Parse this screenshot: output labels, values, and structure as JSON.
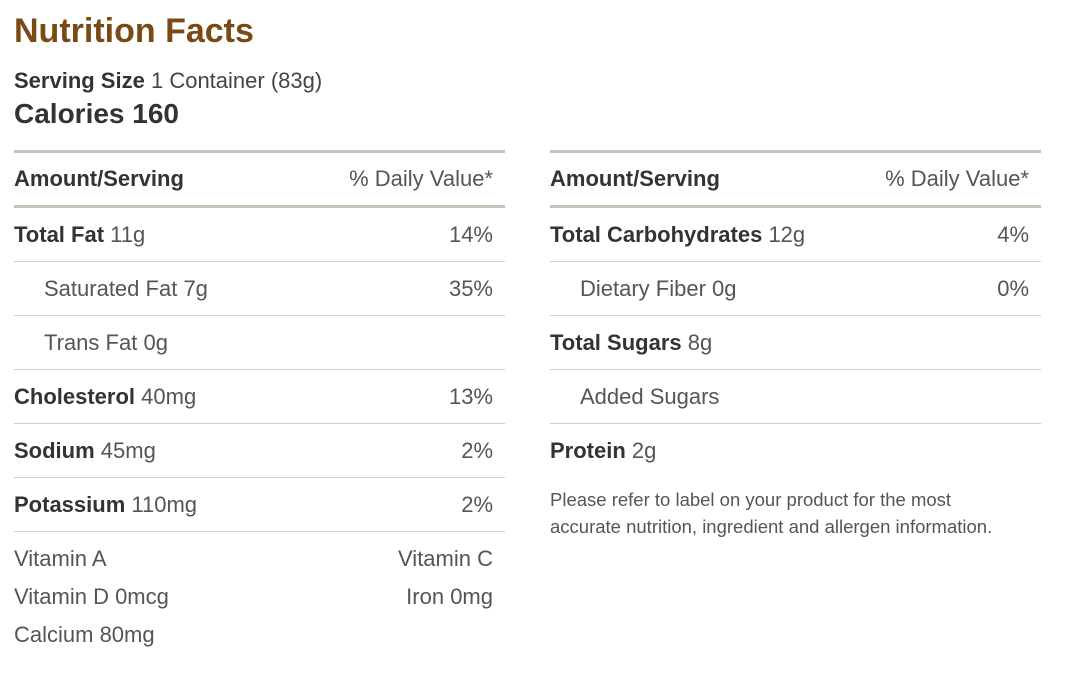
{
  "title": "Nutrition Facts",
  "serving": {
    "label": "Serving Size",
    "value": "1 Container (83g)"
  },
  "calories": {
    "label": "Calories",
    "value": "160"
  },
  "header": {
    "amount_label": "Amount/Serving",
    "daily_value_label": "% Daily Value*"
  },
  "left_rows": [
    {
      "name": "Total Fat",
      "amount": "11g",
      "pct": "14%"
    },
    {
      "name": "Saturated Fat",
      "amount": "7g",
      "pct": "35%"
    },
    {
      "name": "Trans Fat",
      "amount": "0g",
      "pct": ""
    },
    {
      "name": "Cholesterol",
      "amount": "40mg",
      "pct": "13%"
    },
    {
      "name": "Sodium",
      "amount": "45mg",
      "pct": "2%"
    },
    {
      "name": "Potassium",
      "amount": "110mg",
      "pct": "2%"
    }
  ],
  "vitamins": [
    {
      "left": "Vitamin A",
      "right": "Vitamin C"
    },
    {
      "left": "Vitamin D 0mcg",
      "right": "Iron 0mg"
    },
    {
      "left": "Calcium 80mg",
      "right": ""
    }
  ],
  "right_rows": [
    {
      "name": "Total Carbohydrates",
      "amount": "12g",
      "pct": "4%"
    },
    {
      "name": "Dietary Fiber",
      "amount": "0g",
      "pct": "0%"
    },
    {
      "name": "Total Sugars",
      "amount": "8g",
      "pct": ""
    },
    {
      "name": "Added Sugars",
      "amount": "",
      "pct": ""
    },
    {
      "name": "Protein",
      "amount": "2g",
      "pct": ""
    }
  ],
  "note": "Please refer to label on your product for the most accurate nutrition, ingredient and allergen information."
}
